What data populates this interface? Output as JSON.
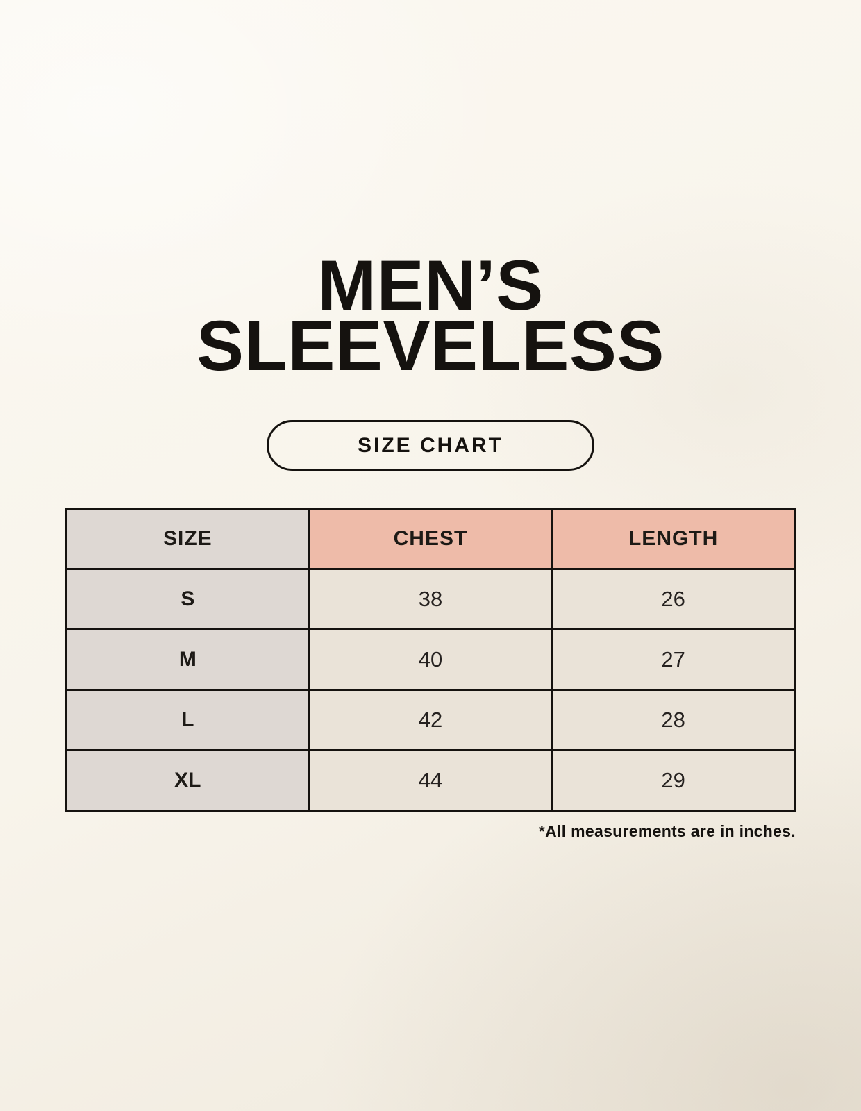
{
  "header": {
    "title_line1": "MEN’S",
    "title_line2": "SLEEVELESS",
    "badge_label": "SIZE CHART"
  },
  "chart_data": {
    "type": "table",
    "title": "MEN’S SLEEVELESS",
    "subtitle": "SIZE CHART",
    "columns": [
      "SIZE",
      "CHEST",
      "LENGTH"
    ],
    "rows": [
      [
        "S",
        38,
        26
      ],
      [
        "M",
        40,
        27
      ],
      [
        "L",
        42,
        28
      ],
      [
        "XL",
        44,
        29
      ]
    ],
    "note": "*All measurements are in inches.",
    "units": "inches"
  },
  "colors": {
    "background_cream": "#f8f4eb",
    "header_pink": "#eebba9",
    "size_column_gray": "#ded8d3",
    "value_cell_beige": "#eae3d8",
    "border_black": "#15120f"
  }
}
